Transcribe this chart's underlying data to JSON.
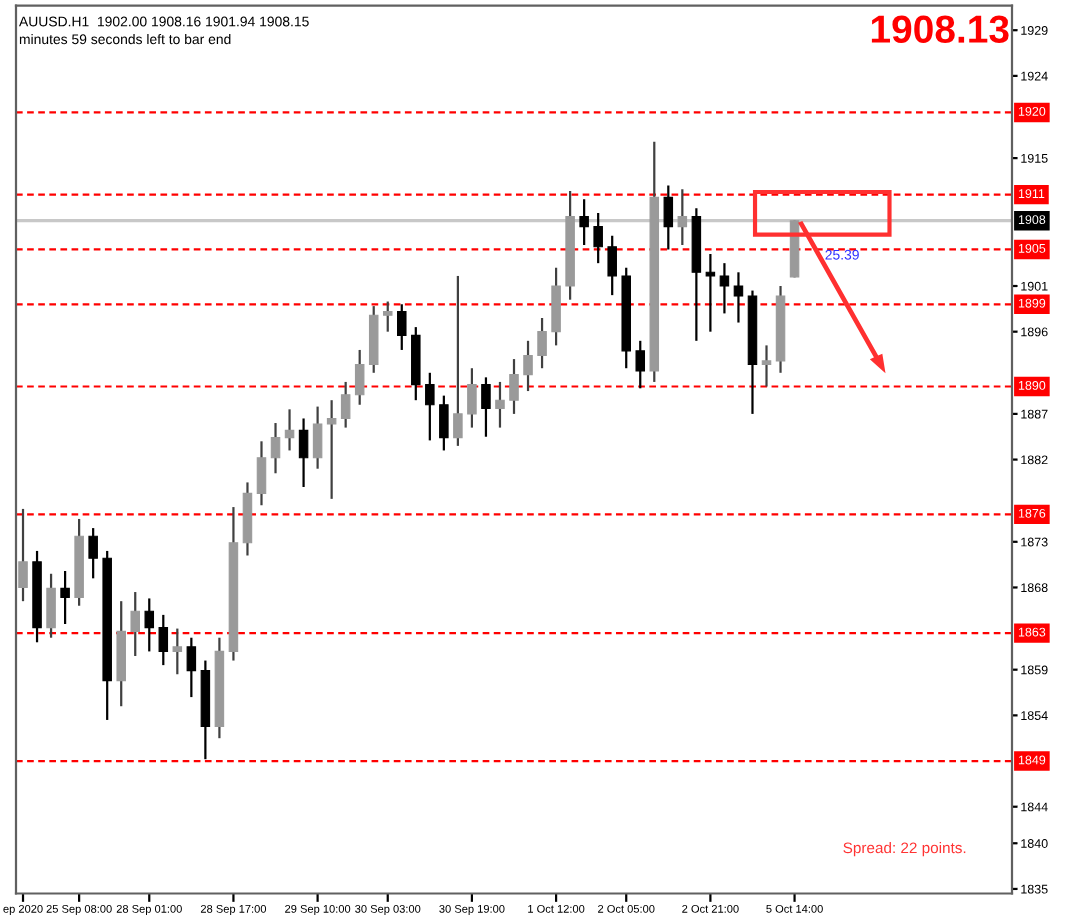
{
  "chart_data": {
    "type": "candlestick",
    "categories": [
      "ep 2020",
      null,
      null,
      null,
      "25 Sep 08:00",
      null,
      null,
      null,
      null,
      "28 Sep 01:00",
      null,
      null,
      null,
      null,
      null,
      "28 Sep 17:00",
      null,
      null,
      null,
      null,
      null,
      "29 Sep 10:00",
      null,
      null,
      null,
      null,
      "30 Sep 03:00",
      null,
      null,
      null,
      null,
      null,
      "30 Sep 19:00",
      null,
      null,
      null,
      null,
      null,
      "1 Oct 12:00",
      null,
      null,
      null,
      null,
      "2 Oct 05:00",
      null,
      null,
      null,
      null,
      null,
      "2 Oct 21:00",
      null,
      null,
      null,
      null,
      null,
      "5 Oct 14:00",
      null,
      null,
      null,
      null,
      null,
      null,
      null,
      null,
      null,
      null,
      null,
      null,
      null,
      null,
      null
    ],
    "ohlc": [
      [
        1868.0,
        1876.6,
        1866.5,
        1870.8
      ],
      [
        1870.8,
        1872.0,
        1862.0,
        1863.6
      ],
      [
        1863.6,
        1869.5,
        1862.5,
        1867.9
      ],
      [
        1867.9,
        1869.8,
        1864.0,
        1866.9
      ],
      [
        1866.9,
        1875.5,
        1866.0,
        1873.6
      ],
      [
        1873.6,
        1874.5,
        1869.0,
        1871.2
      ],
      [
        1871.2,
        1872.0,
        1853.5,
        1857.8
      ],
      [
        1857.8,
        1866.5,
        1855.0,
        1863.2
      ],
      [
        1863.2,
        1867.5,
        1860.5,
        1865.4
      ],
      [
        1865.4,
        1866.8,
        1861.0,
        1863.6
      ],
      [
        1863.6,
        1865.0,
        1859.5,
        1861.0
      ],
      [
        1861.0,
        1863.5,
        1858.5,
        1861.5
      ],
      [
        1861.5,
        1862.5,
        1856.0,
        1858.9
      ],
      [
        1858.9,
        1860.0,
        1849.2,
        1852.8
      ],
      [
        1852.8,
        1862.5,
        1851.5,
        1861.0
      ],
      [
        1861.0,
        1876.8,
        1860.0,
        1872.9
      ],
      [
        1872.9,
        1879.5,
        1871.5,
        1878.3
      ],
      [
        1878.3,
        1884.0,
        1877.0,
        1882.2
      ],
      [
        1882.2,
        1886.0,
        1880.5,
        1884.4
      ],
      [
        1884.4,
        1887.5,
        1883.0,
        1885.2
      ],
      [
        1885.2,
        1886.5,
        1879.0,
        1882.2
      ],
      [
        1882.2,
        1887.8,
        1881.0,
        1885.9
      ],
      [
        1885.9,
        1888.5,
        1877.7,
        1886.5
      ],
      [
        1886.5,
        1890.5,
        1885.5,
        1889.1
      ],
      [
        1889.1,
        1894.0,
        1888.0,
        1892.4
      ],
      [
        1892.4,
        1898.8,
        1891.5,
        1897.8
      ],
      [
        1897.8,
        1899.3,
        1896.0,
        1898.2
      ],
      [
        1898.2,
        1899.0,
        1894.0,
        1895.6
      ],
      [
        1895.6,
        1896.5,
        1888.5,
        1890.2
      ],
      [
        1890.2,
        1891.5,
        1884.1,
        1888.0
      ],
      [
        1888.0,
        1889.0,
        1883.0,
        1884.4
      ],
      [
        1884.4,
        1902.1,
        1883.5,
        1887.0
      ],
      [
        1887.0,
        1892.0,
        1885.5,
        1890.2
      ],
      [
        1890.2,
        1891.0,
        1884.5,
        1887.6
      ],
      [
        1887.6,
        1890.5,
        1885.5,
        1888.5
      ],
      [
        1888.5,
        1893.0,
        1887.0,
        1891.3
      ],
      [
        1891.3,
        1895.0,
        1889.5,
        1893.4
      ],
      [
        1893.4,
        1897.5,
        1892.0,
        1896.0
      ],
      [
        1896.0,
        1903.0,
        1894.5,
        1901.0
      ],
      [
        1901.0,
        1911.4,
        1899.5,
        1908.6
      ],
      [
        1908.6,
        1910.5,
        1905.5,
        1907.5
      ],
      [
        1907.5,
        1909.0,
        1903.5,
        1905.3
      ],
      [
        1905.3,
        1906.5,
        1900.0,
        1902.1
      ],
      [
        1902.1,
        1903.0,
        1892.0,
        1893.9
      ],
      [
        1893.9,
        1895.0,
        1889.8,
        1891.7
      ],
      [
        1891.7,
        1916.8,
        1890.5,
        1910.7
      ],
      [
        1910.7,
        1912.0,
        1905.0,
        1907.5
      ],
      [
        1907.5,
        1911.6,
        1905.5,
        1908.6
      ],
      [
        1908.6,
        1909.5,
        1895.0,
        1902.5
      ],
      [
        1902.5,
        1904.5,
        1896.0,
        1902.1
      ],
      [
        1902.1,
        1903.5,
        1898.0,
        1901.0
      ],
      [
        1901.0,
        1902.5,
        1897.0,
        1899.9
      ],
      [
        1899.9,
        1900.5,
        1887.0,
        1892.4
      ],
      [
        1892.4,
        1894.5,
        1890.0,
        1892.8
      ],
      [
        1892.8,
        1901.0,
        1891.5,
        1899.9
      ],
      [
        1902.0,
        1908.16,
        1901.94,
        1908.15
      ],
      null,
      null,
      null,
      null,
      null,
      null,
      null,
      null,
      null,
      null,
      null,
      null,
      null,
      null,
      null
    ],
    "ylim": [
      1834.5,
      1931.7
    ],
    "yticks": [
      1835,
      1840,
      1844,
      1854,
      1859,
      1868,
      1873,
      1882,
      1887,
      1896,
      1901,
      1915,
      1924,
      1929
    ],
    "ref_lines": [
      {
        "axis": "y",
        "value": 1920,
        "label": "1920",
        "color": "#ff0000",
        "line_style": "dashed"
      },
      {
        "axis": "y",
        "value": 1911,
        "label": "1911",
        "color": "#ff0000",
        "line_style": "dashed"
      },
      {
        "axis": "y",
        "value": 1905,
        "label": "1905",
        "color": "#ff0000",
        "line_style": "dashed"
      },
      {
        "axis": "y",
        "value": 1899,
        "label": "1899",
        "color": "#ff0000",
        "line_style": "dashed"
      },
      {
        "axis": "y",
        "value": 1890,
        "label": "1890",
        "color": "#ff0000",
        "line_style": "dashed"
      },
      {
        "axis": "y",
        "value": 1876,
        "label": "1876",
        "color": "#ff0000",
        "line_style": "dashed"
      },
      {
        "axis": "y",
        "value": 1863,
        "label": "1863",
        "color": "#ff0000",
        "line_style": "dashed"
      },
      {
        "axis": "y",
        "value": 1849,
        "label": "1849",
        "color": "#ff0000",
        "line_style": "dashed"
      },
      {
        "axis": "y",
        "value": 1908.15,
        "label": "1908",
        "color": "#c8c8c8",
        "line_style": "solid"
      }
    ],
    "annotations": [
      "AUUSD.H1  1902.00 1908.16 1901.94 1908.15",
      "minutes 59 seconds left to bar end",
      "1908.13",
      "25.39",
      "Spread: 22 points."
    ]
  }
}
